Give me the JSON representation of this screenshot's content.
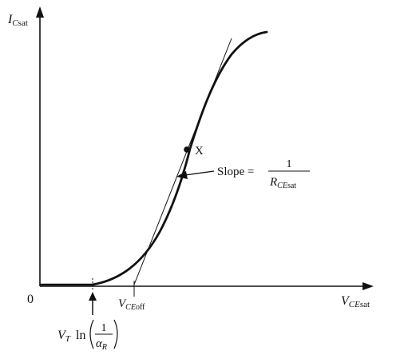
{
  "figure": {
    "y_axis_label": {
      "main": "I",
      "sub_italic": "C",
      "sub_roman": "sat"
    },
    "x_axis_label": {
      "main": "V",
      "sub_italic": "CE",
      "sub_roman": "sat"
    },
    "origin_label": "0",
    "point_label": "X",
    "vceoff_label": {
      "main": "V",
      "sub_italic": "CE",
      "sub_roman": "off"
    },
    "slope_label": {
      "prefix": "Slope =",
      "numerator": "1",
      "den_main": "R",
      "den_sub_italic": "CE",
      "den_sub_roman": "sat"
    },
    "threshold_label": {
      "v": "V",
      "v_sub": "T",
      "ln": "ln",
      "numerator": "1",
      "den_main": "α",
      "den_sub": "R"
    },
    "colors": {
      "ink": "#111111",
      "background": "#ffffff"
    }
  }
}
